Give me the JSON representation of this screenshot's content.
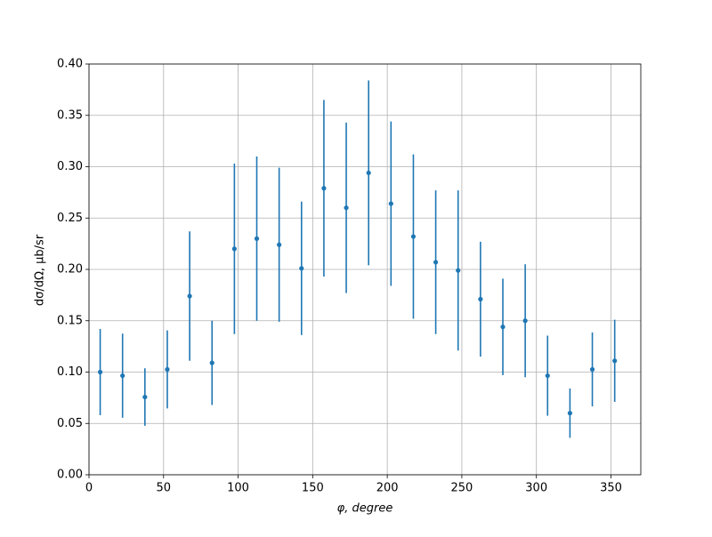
{
  "chart_data": {
    "type": "errorbar",
    "x_label": "φ, degree",
    "y_label": "dσ/dΩ, μb/sr",
    "x": [
      7.5,
      22.5,
      37.5,
      52.5,
      67.5,
      82.5,
      97.5,
      112.5,
      127.5,
      142.5,
      157.5,
      172.5,
      187.5,
      202.5,
      217.5,
      232.5,
      247.5,
      262.5,
      277.5,
      292.5,
      307.5,
      322.5,
      337.5,
      352.5
    ],
    "values": [
      0.1,
      0.0965,
      0.0757,
      0.1026,
      0.174,
      0.109,
      0.22,
      0.23,
      0.224,
      0.201,
      0.279,
      0.26,
      0.294,
      0.264,
      0.232,
      0.207,
      0.199,
      0.171,
      0.144,
      0.15,
      0.0965,
      0.06,
      0.1026,
      0.111
    ],
    "errors": [
      0.042,
      0.041,
      0.028,
      0.038,
      0.063,
      0.041,
      0.083,
      0.08,
      0.075,
      0.065,
      0.086,
      0.083,
      0.09,
      0.08,
      0.08,
      0.07,
      0.078,
      0.056,
      0.047,
      0.055,
      0.039,
      0.024,
      0.036,
      0.04
    ],
    "color": "#1f77b4",
    "xlim": [
      0,
      370
    ],
    "xticks": [
      0,
      50,
      100,
      150,
      200,
      250,
      300,
      350
    ],
    "ylim": [
      0,
      0.4
    ],
    "yticks": [
      {
        "value": 0,
        "label": "0.00"
      },
      {
        "value": 0.05,
        "label": "0.05"
      },
      {
        "value": 0.1,
        "label": "0.10"
      },
      {
        "value": 0.15,
        "label": "0.15"
      },
      {
        "value": 0.2,
        "label": "0.20"
      },
      {
        "value": 0.25,
        "label": "0.25"
      },
      {
        "value": 0.3,
        "label": "0.30"
      },
      {
        "value": 0.35,
        "label": "0.35"
      },
      {
        "value": 0.4,
        "label": "0.40"
      }
    ],
    "grid": true
  }
}
